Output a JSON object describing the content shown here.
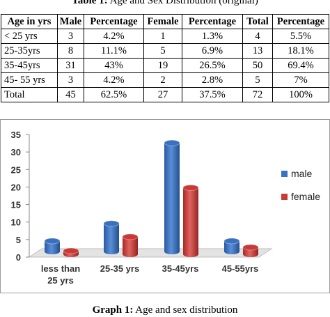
{
  "table": {
    "caption_label": "Table 1:",
    "caption_text": " Age and Sex Distribution (original)",
    "headers": [
      "Age in yrs",
      "Male",
      "Percentage",
      "Female",
      "Percentage",
      "Total",
      "Percentage"
    ],
    "rows": [
      [
        "< 25 yrs",
        "3",
        "4.2%",
        "1",
        "1.3%",
        "4",
        "5.5%"
      ],
      [
        "25-35yrs",
        "8",
        "11.1%",
        "5",
        "6.9%",
        "13",
        "18.1%"
      ],
      [
        "35-45yrs",
        "31",
        "43%",
        "19",
        "26.5%",
        "50",
        "69.4%"
      ],
      [
        "45- 55 yrs",
        "3",
        "4.2%",
        "2",
        "2.8%",
        "5",
        "7%"
      ],
      [
        "Total",
        "45",
        "62.5%",
        "27",
        "37.5%",
        "72",
        "100%"
      ]
    ]
  },
  "chart_data": {
    "type": "bar",
    "categories": [
      "less than 25 yrs",
      "25-35 yrs",
      "35-45yrs",
      "45-55yrs"
    ],
    "series": [
      {
        "name": "male",
        "values": [
          3,
          8,
          31,
          3
        ],
        "color": "#3a70c0"
      },
      {
        "name": "female",
        "values": [
          1,
          5,
          19,
          2
        ],
        "color": "#c93a36"
      }
    ],
    "ylim": [
      0,
      35
    ],
    "yticks": [
      0,
      5,
      10,
      15,
      20,
      25,
      30,
      35
    ],
    "grid": false,
    "legend": "right",
    "style": "3d-cylinder"
  },
  "graph_caption": {
    "label": "Graph 1:",
    "text": " Age and sex distribution"
  }
}
